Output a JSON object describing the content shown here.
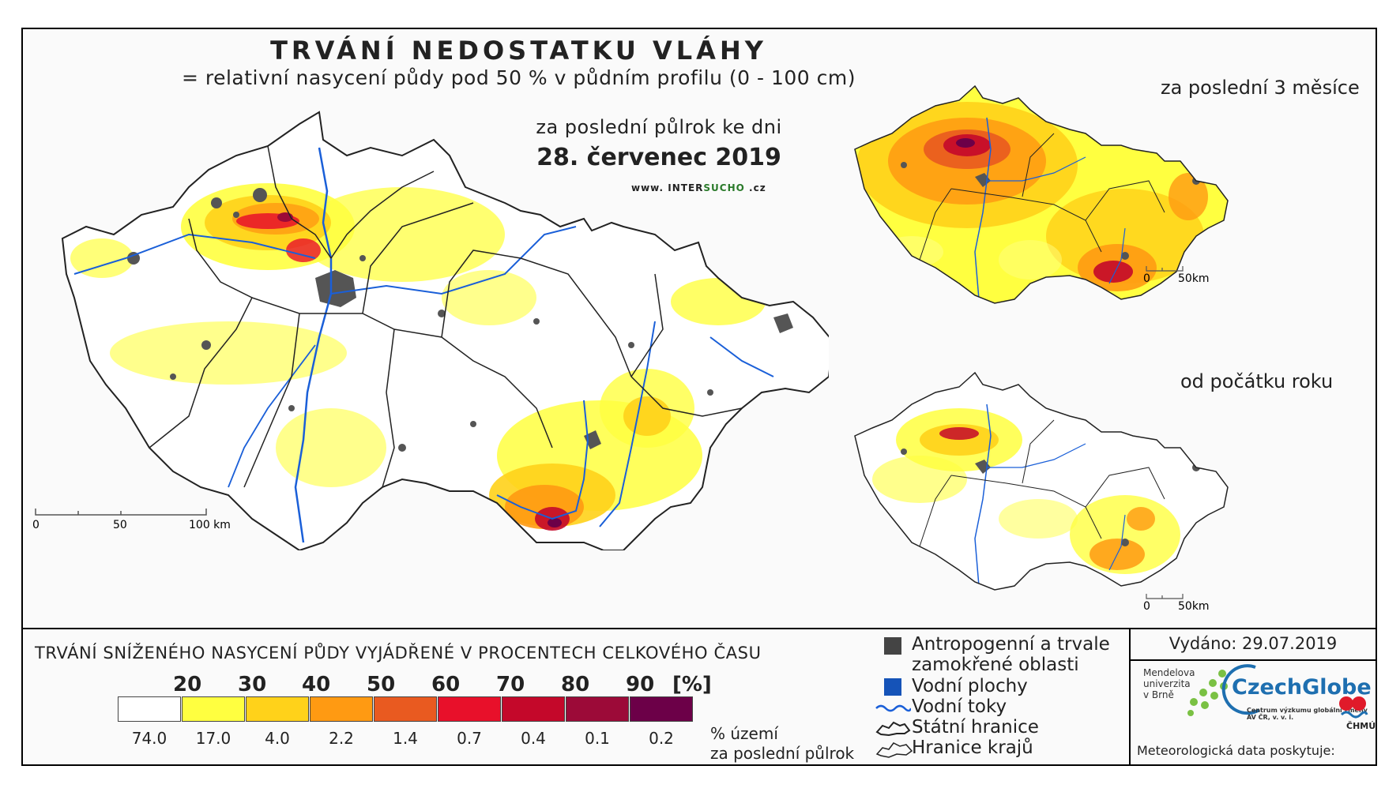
{
  "title": "TRVÁNÍ NEDOSTATKU VLÁHY",
  "subtitle": "= relativní nasycení půdy pod 50 % v půdním profilu (0 - 100 cm)",
  "main_map": {
    "period_label": "za poslední půlrok ke dni",
    "date": "28. červenec 2019",
    "website_prefix": "www.",
    "website_name_1": "INTER",
    "website_name_2": "SUCHO",
    "website_suffix": ".cz",
    "scale": {
      "labels": [
        "0",
        "50",
        "100 km"
      ]
    }
  },
  "inset_3months": {
    "title": "za poslední 3 měsíce",
    "scale": {
      "labels": [
        "0",
        "50km"
      ]
    }
  },
  "inset_year": {
    "title": "od počátku roku",
    "scale": {
      "labels": [
        "0",
        "50km"
      ]
    }
  },
  "legend": {
    "title": "TRVÁNÍ SNÍŽENÉHO NASYCENÍ PŮDY VYJÁDŘENÉ V PROCENTECH CELKOVÉHO ČASU",
    "thresholds": [
      "20",
      "30",
      "40",
      "50",
      "60",
      "70",
      "80",
      "90"
    ],
    "unit": "[%]",
    "classes": [
      {
        "color": "#ffffff",
        "share": "74.0"
      },
      {
        "color": "#ffff40",
        "share": "17.0"
      },
      {
        "color": "#ffd21a",
        "share": "4.0"
      },
      {
        "color": "#ff9a12",
        "share": "2.2"
      },
      {
        "color": "#e95a20",
        "share": "1.4"
      },
      {
        "color": "#e8102a",
        "share": "0.7"
      },
      {
        "color": "#c4082a",
        "share": "0.4"
      },
      {
        "color": "#9c0a38",
        "share": "0.1"
      },
      {
        "color": "#6c0048",
        "share": "0.2"
      }
    ],
    "share_label_line1": "% území",
    "share_label_line2": "za poslední půlrok"
  },
  "symbols": {
    "anthropogenic": "Antropogenní a trvale zamokřené oblasti",
    "water_bodies": "Vodní plochy",
    "water_courses": "Vodní toky",
    "state_border": "Státní hranice",
    "region_border": "Hranice krajů"
  },
  "publication": {
    "issued": "Vydáno: 29.07.2019",
    "mendel": [
      "Mendelova",
      "univerzita",
      "v Brně"
    ],
    "czechglobe": "CzechGlobe",
    "czechglobe_sub": "Centrum výzkumu globální změny AV ČR, v. v. i.",
    "data_provider": "Meteorologická data poskytuje:",
    "chmu": "ČHMÚ"
  },
  "colors": {
    "river": "#1a5fd8",
    "urban": "#555555",
    "border": "#222222"
  }
}
